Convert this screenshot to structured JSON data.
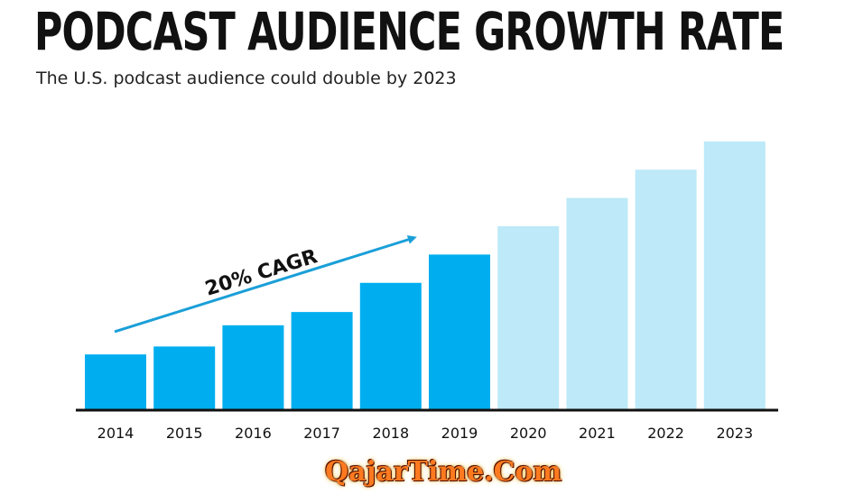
{
  "title": "PODCAST AUDIENCE GROWTH RATE",
  "subtitle": "The U.S. podcast audience could double by 2023",
  "watermark": "QajarTime.Com",
  "colors": {
    "actual": "#00aeef",
    "projected": "#bde9f8",
    "arrow": "#1a9fd8",
    "axis": "#111111"
  },
  "chart_data": {
    "type": "bar",
    "categories": [
      "2014",
      "2015",
      "2016",
      "2017",
      "2018",
      "2019",
      "2020",
      "2021",
      "2022",
      "2023"
    ],
    "values": [
      62,
      71,
      95,
      110,
      143,
      175,
      207,
      239,
      271,
      303
    ],
    "projected_from_index": 6,
    "ylim": [
      0,
      310
    ],
    "annotation": "20% CAGR",
    "xlabel": "",
    "ylabel": ""
  }
}
